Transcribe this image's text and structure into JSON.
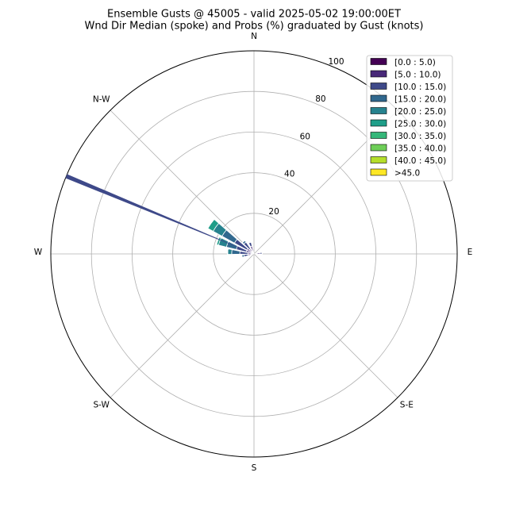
{
  "chart_data": {
    "type": "windrose",
    "title": "Ensemble Gusts @ 45005 - valid 2025-05-02 19:00:00ET",
    "subtitle": "Wnd Dir Median (spoke) and Probs (%) graduated by Gust (knots)",
    "direction_labels": [
      {
        "value": 0,
        "label": "N"
      },
      {
        "value": 90,
        "label": "E"
      },
      {
        "value": 135,
        "label": "S-E"
      },
      {
        "value": 180,
        "label": "S"
      },
      {
        "value": 225,
        "label": "S-W"
      },
      {
        "value": 270,
        "label": "W"
      },
      {
        "value": 315,
        "label": "N-W"
      }
    ],
    "directions": [
      85,
      260,
      275,
      290,
      305,
      320,
      340
    ],
    "series": [
      {
        "name": "[0.0 : 5.0)",
        "color": "#440154",
        "values": [
          0,
          0,
          0,
          0,
          0,
          0,
          0
        ]
      },
      {
        "name": "[5.0 : 10.0)",
        "color": "#482878",
        "values": [
          3,
          3,
          3,
          4,
          4,
          3,
          4
        ]
      },
      {
        "name": "[10.0 : 15.0)",
        "color": "#3e4989",
        "values": [
          1,
          2,
          4,
          5,
          7,
          4,
          2
        ]
      },
      {
        "name": "[15.0 : 20.0)",
        "color": "#31688e",
        "values": [
          0,
          1,
          4,
          5,
          7,
          1,
          0
        ]
      },
      {
        "name": "[20.0 : 25.0)",
        "color": "#26828e",
        "values": [
          0,
          0,
          2,
          4,
          5,
          0,
          0
        ]
      },
      {
        "name": "[25.0 : 30.0)",
        "color": "#1f9e89",
        "values": [
          0,
          0,
          0,
          1,
          3,
          0,
          0
        ]
      },
      {
        "name": "[30.0 : 35.0)",
        "color": "#35b779",
        "values": [
          0,
          0,
          0,
          0,
          0,
          0,
          0
        ]
      },
      {
        "name": "[35.0 : 40.0)",
        "color": "#6ece58",
        "values": [
          0,
          0,
          0,
          0,
          0,
          0,
          0
        ]
      },
      {
        "name": "[40.0 : 45.0)",
        "color": "#b5de2b",
        "values": [
          0,
          0,
          0,
          0,
          0,
          0,
          0
        ]
      },
      {
        "name": ">45.0",
        "color": "#fde725",
        "values": [
          0,
          0,
          0,
          0,
          0,
          0,
          0
        ]
      }
    ],
    "median_direction": 292.5,
    "spoke_color": "#3e4989",
    "rlim": [
      0,
      100
    ],
    "rticks": [
      20,
      40,
      60,
      80,
      100
    ],
    "grid": true
  }
}
